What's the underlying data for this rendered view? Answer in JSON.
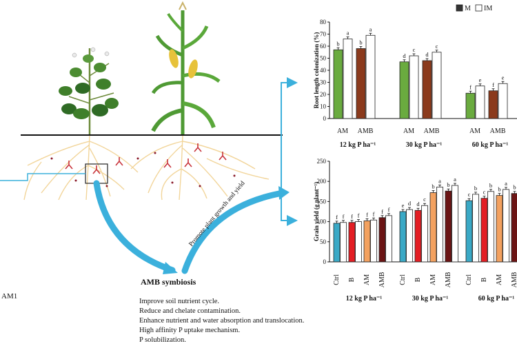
{
  "left": {
    "side_label": "AM1",
    "path_label": "Promote plant growth and yield",
    "amb_title": "AMB symbiosis",
    "benefits": [
      "Improve soil nutrient cycle.",
      "Reduce and chelate contamination.",
      "Enhance nutrient and water absorption and translocation.",
      "High affinity P uptake mechanism.",
      "P solubilization."
    ]
  },
  "legend": {
    "m_label": "M",
    "im_label": "IM"
  },
  "chart_data": [
    {
      "type": "bar",
      "ylabel": "Root length colonization (%)",
      "ylim": [
        0,
        80
      ],
      "yticks": [
        0,
        10,
        20,
        30,
        40,
        50,
        60,
        70,
        80
      ],
      "series": [
        {
          "name": "M"
        },
        {
          "name": "IM"
        }
      ],
      "groups": [
        {
          "label": "12 kg P ha⁻¹",
          "bars": [
            {
              "category": "AM",
              "series": "M",
              "value": 57,
              "letter": "b",
              "color": "#6aab3f"
            },
            {
              "category": "AM",
              "series": "IM",
              "value": 66,
              "letter": "a",
              "color": "#ffffff"
            },
            {
              "category": "AMB",
              "series": "M",
              "value": 58,
              "letter": "b",
              "color": "#8b3a1c"
            },
            {
              "category": "AMB",
              "series": "IM",
              "value": 69,
              "letter": "a",
              "color": "#ffffff"
            }
          ]
        },
        {
          "label": "30 kg P ha⁻¹",
          "bars": [
            {
              "category": "AM",
              "series": "M",
              "value": 47,
              "letter": "d",
              "color": "#6aab3f"
            },
            {
              "category": "AM",
              "series": "IM",
              "value": 52,
              "letter": "c",
              "color": "#ffffff"
            },
            {
              "category": "AMB",
              "series": "M",
              "value": 48,
              "letter": "d",
              "color": "#8b3a1c"
            },
            {
              "category": "AMB",
              "series": "IM",
              "value": 55,
              "letter": "c",
              "color": "#ffffff"
            }
          ]
        },
        {
          "label": "60 kg P ha⁻¹",
          "bars": [
            {
              "category": "AM",
              "series": "M",
              "value": 21,
              "letter": "f",
              "color": "#6aab3f"
            },
            {
              "category": "AM",
              "series": "IM",
              "value": 27,
              "letter": "e",
              "color": "#ffffff"
            },
            {
              "category": "AMB",
              "series": "M",
              "value": 23,
              "letter": "f",
              "color": "#8b3a1c"
            },
            {
              "category": "AMB",
              "series": "IM",
              "value": 29,
              "letter": "e",
              "color": "#ffffff"
            }
          ]
        }
      ]
    },
    {
      "type": "bar",
      "ylabel": "Grain yield (g plant⁻¹)",
      "ylim": [
        0,
        250
      ],
      "yticks": [
        0,
        50,
        100,
        150,
        200,
        250
      ],
      "groups": [
        {
          "label": "12 kg P ha⁻¹",
          "bars": [
            {
              "category": "Ctrl",
              "series": "M",
              "value": 96,
              "letter": "f",
              "color": "#3aa9c6"
            },
            {
              "category": "Ctrl",
              "series": "IM",
              "value": 98,
              "letter": "f",
              "color": "#ffffff"
            },
            {
              "category": "B",
              "series": "M",
              "value": 98,
              "letter": "f",
              "color": "#e31e24"
            },
            {
              "category": "B",
              "series": "IM",
              "value": 100,
              "letter": "f",
              "color": "#ffffff"
            },
            {
              "category": "AM",
              "series": "M",
              "value": 102,
              "letter": "f",
              "color": "#f3a15f"
            },
            {
              "category": "AM",
              "series": "IM",
              "value": 104,
              "letter": "f",
              "color": "#ffffff"
            },
            {
              "category": "AMB",
              "series": "M",
              "value": 110,
              "letter": "f",
              "color": "#6b1414"
            },
            {
              "category": "AMB",
              "series": "IM",
              "value": 115,
              "letter": "f",
              "color": "#ffffff"
            }
          ]
        },
        {
          "label": "30 kg P ha⁻¹",
          "bars": [
            {
              "category": "Ctrl",
              "series": "M",
              "value": 125,
              "letter": "e",
              "color": "#3aa9c6"
            },
            {
              "category": "Ctrl",
              "series": "IM",
              "value": 130,
              "letter": "d",
              "color": "#ffffff"
            },
            {
              "category": "B",
              "series": "M",
              "value": 128,
              "letter": "d",
              "color": "#e31e24"
            },
            {
              "category": "B",
              "series": "IM",
              "value": 140,
              "letter": "c",
              "color": "#ffffff"
            },
            {
              "category": "AM",
              "series": "M",
              "value": 172,
              "letter": "b",
              "color": "#f3a15f"
            },
            {
              "category": "AM",
              "series": "IM",
              "value": 186,
              "letter": "a",
              "color": "#ffffff"
            },
            {
              "category": "AMB",
              "series": "M",
              "value": 176,
              "letter": "b",
              "color": "#6b1414"
            },
            {
              "category": "AMB",
              "series": "IM",
              "value": 190,
              "letter": "a",
              "color": "#ffffff"
            }
          ]
        },
        {
          "label": "60 kg P ha⁻¹",
          "bars": [
            {
              "category": "Ctrl",
              "series": "M",
              "value": 152,
              "letter": "c",
              "color": "#3aa9c6"
            },
            {
              "category": "Ctrl",
              "series": "IM",
              "value": 168,
              "letter": "b",
              "color": "#ffffff"
            },
            {
              "category": "B",
              "series": "M",
              "value": 158,
              "letter": "c",
              "color": "#e31e24"
            },
            {
              "category": "B",
              "series": "IM",
              "value": 175,
              "letter": "b",
              "color": "#ffffff"
            },
            {
              "category": "AM",
              "series": "M",
              "value": 165,
              "letter": "b",
              "color": "#f3a15f"
            },
            {
              "category": "AM",
              "series": "IM",
              "value": 180,
              "letter": "a",
              "color": "#ffffff"
            },
            {
              "category": "AMB",
              "series": "M",
              "value": 170,
              "letter": "b",
              "color": "#6b1414"
            },
            {
              "category": "AMB",
              "series": "IM",
              "value": 186,
              "letter": "a",
              "color": "#ffffff"
            }
          ]
        }
      ]
    }
  ],
  "colors": {
    "arrow": "#3bb0dc",
    "ground": "#111111",
    "roots": "#f2d59a",
    "am_green": "#6aab3f",
    "amb_brown": "#8b3a1c",
    "ctrl_blue": "#3aa9c6",
    "b_red": "#e31e24",
    "am_orange": "#f3a15f",
    "amb_darkred": "#6b1414",
    "leaf": "#3f7f2a",
    "maize_leaf": "#4f9a34",
    "cob": "#e7c23a"
  }
}
